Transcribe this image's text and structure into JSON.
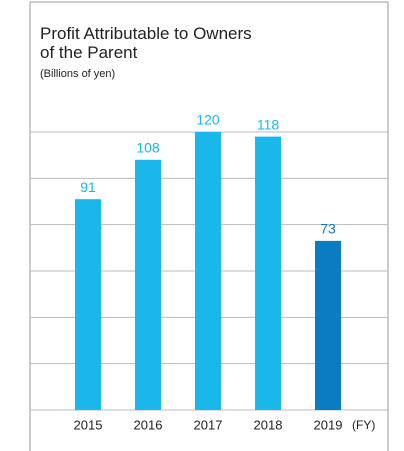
{
  "chart_data": {
    "type": "bar",
    "title": "Profit Attributable to Owners of the Parent",
    "subtitle": "(Billions of yen)",
    "x_label": "(FY)",
    "categories": [
      "2015",
      "2016",
      "2017",
      "2018",
      "2019"
    ],
    "values": [
      91,
      108,
      120,
      118,
      73
    ],
    "colors": [
      "#1ab7ea",
      "#1ab7ea",
      "#1ab7ea",
      "#1ab7ea",
      "#0a7dc2"
    ],
    "ylim": [
      0,
      120
    ],
    "yticks": [
      0,
      20,
      40,
      60,
      80,
      100,
      120
    ],
    "grid": true
  }
}
